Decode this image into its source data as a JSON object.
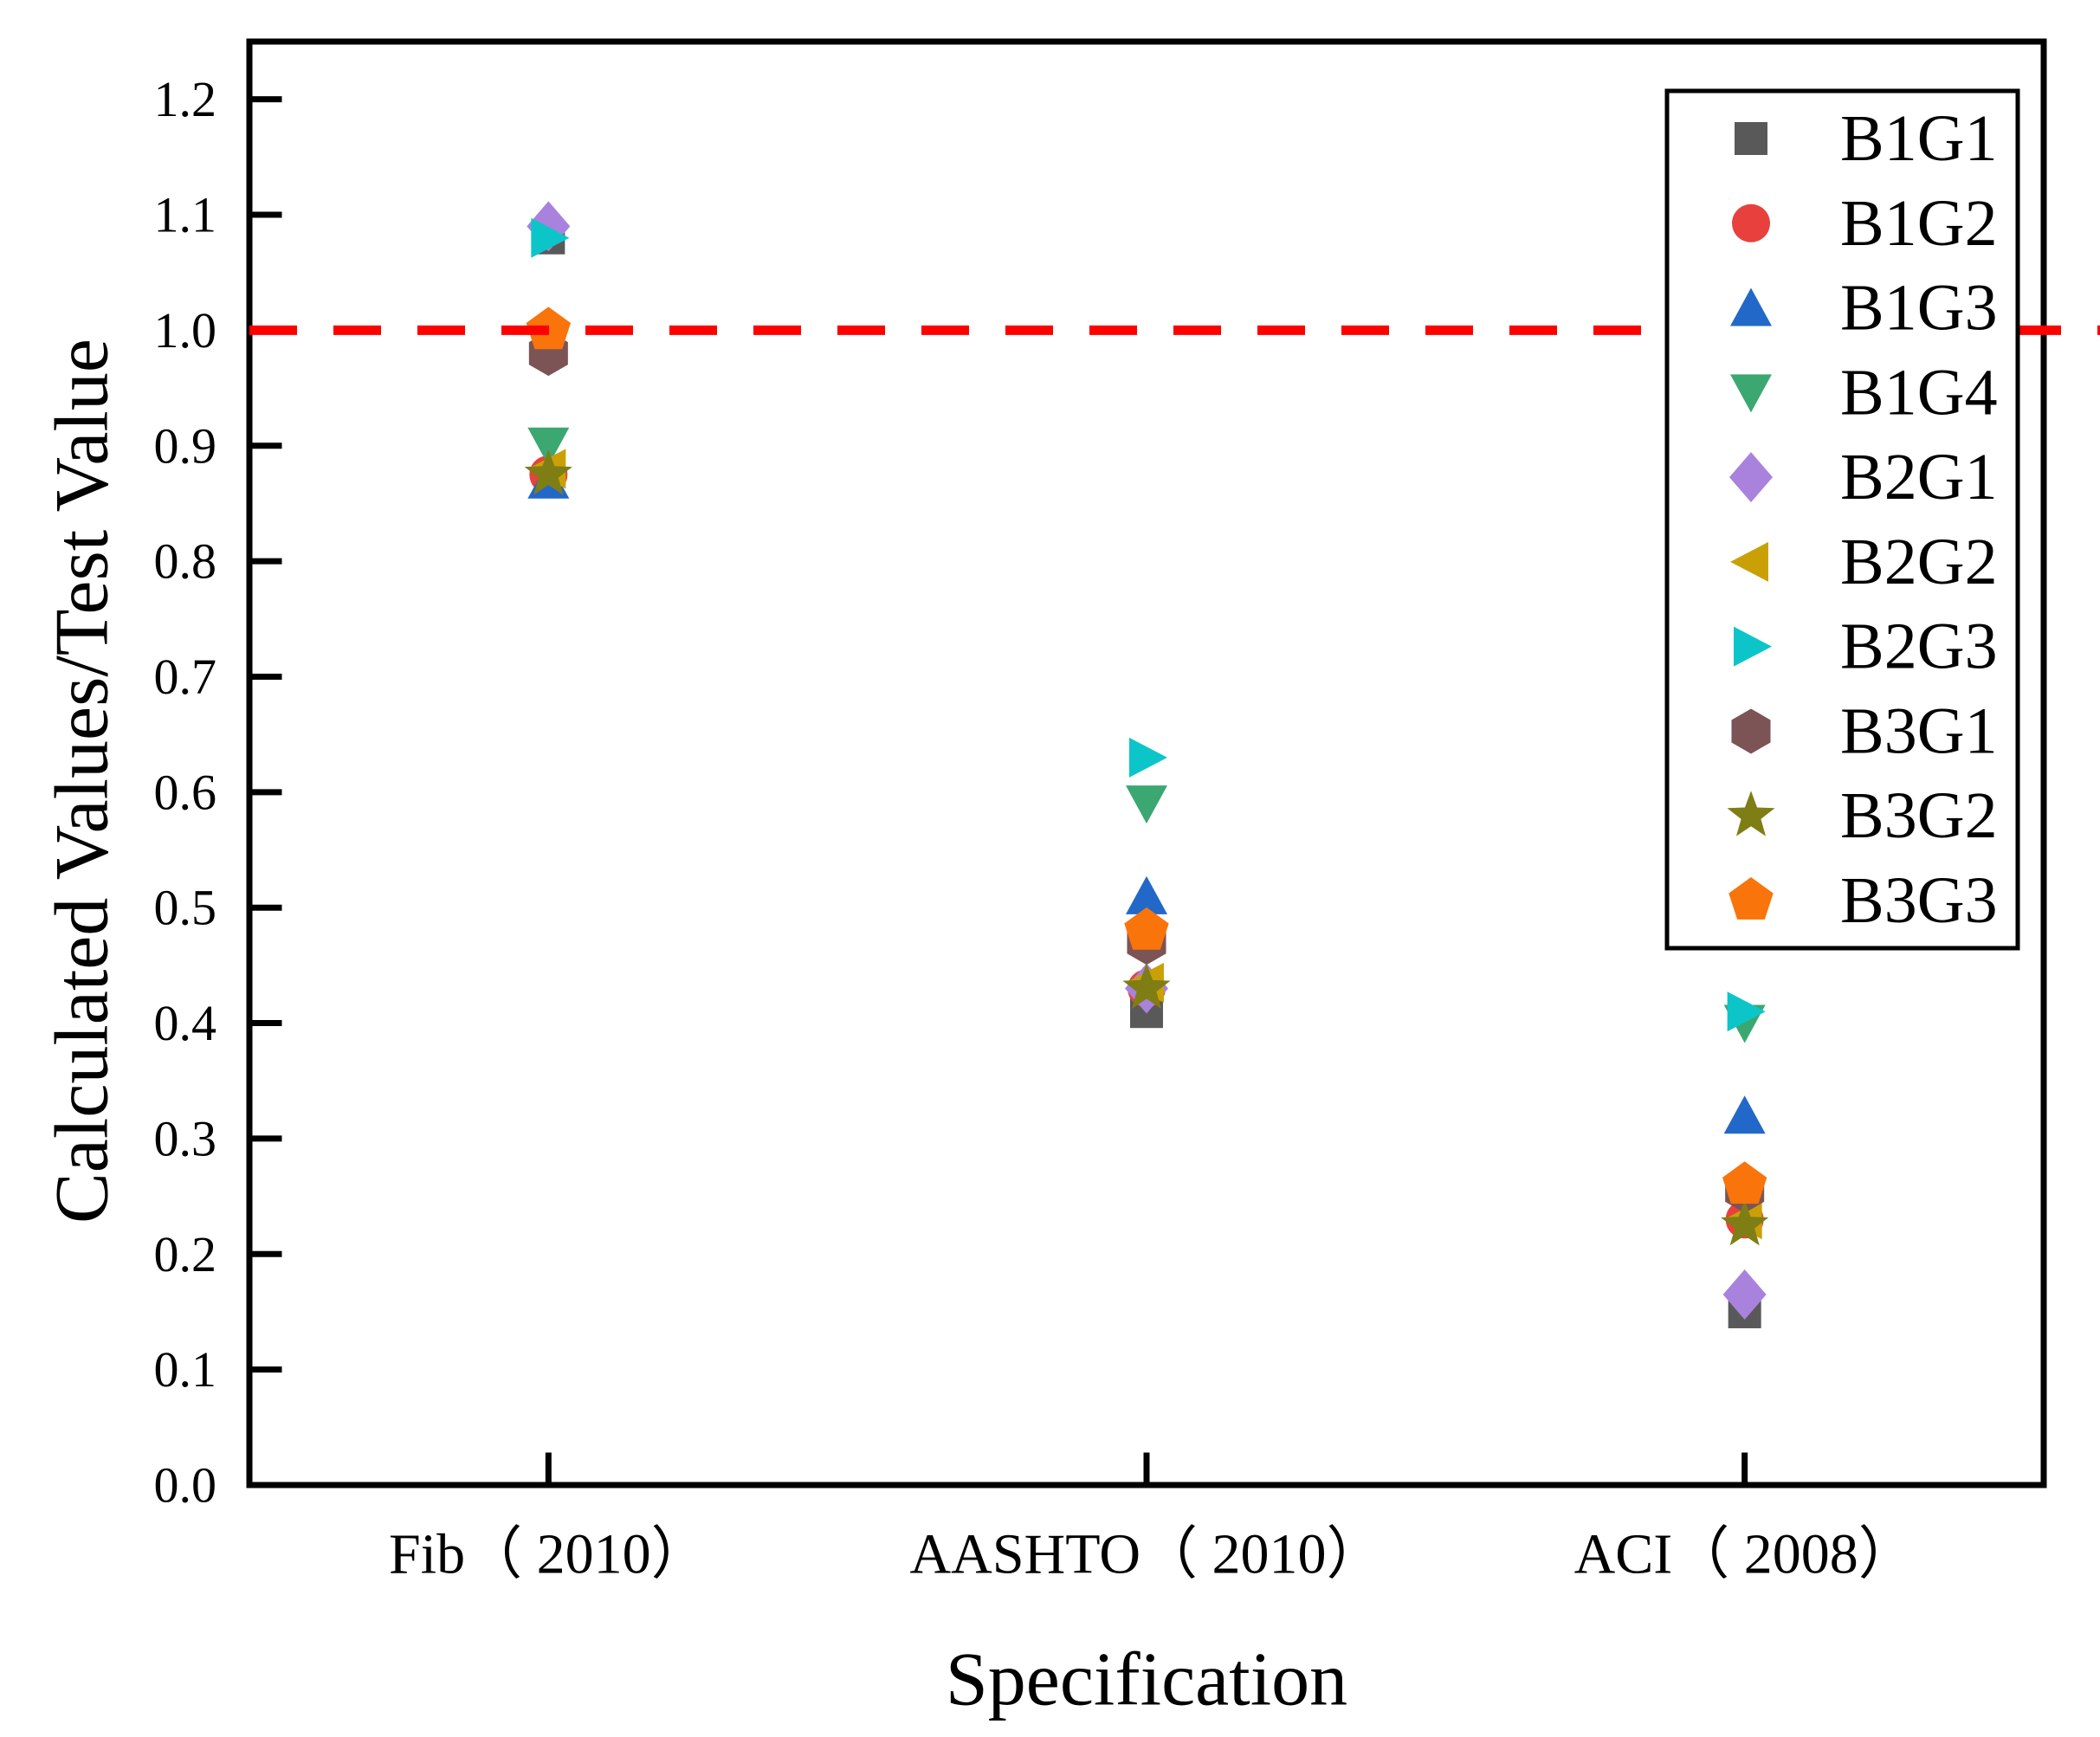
{
  "chart_data": {
    "type": "scatter",
    "title": "",
    "xlabel": "Specification",
    "ylabel": "Calculated Values/Test Value",
    "categories": [
      "Fib（ 2010）",
      "AASHTO（ 2010）",
      "ACI（ 2008）"
    ],
    "ylim": [
      0,
      1.25
    ],
    "yticks": [
      0.0,
      0.1,
      0.2,
      0.3,
      0.4,
      0.5,
      0.6,
      0.7,
      0.8,
      0.9,
      1.0,
      1.1,
      1.2
    ],
    "grid": false,
    "legend_position": "upper right",
    "reference_line": {
      "y": 1.0,
      "color": "#ff0000",
      "style": "dashed"
    },
    "series": [
      {
        "name": "B1G1",
        "marker": "square",
        "color": "#595959",
        "values": [
          1.08,
          0.41,
          0.15
        ]
      },
      {
        "name": "B1G2",
        "marker": "circle",
        "color": "#e8413d",
        "values": [
          0.875,
          0.43,
          0.23
        ]
      },
      {
        "name": "B1G3",
        "marker": "triangle-up",
        "color": "#2268c9",
        "values": [
          0.87,
          0.51,
          0.32
        ]
      },
      {
        "name": "B1G4",
        "marker": "triangle-down",
        "color": "#3ba871",
        "values": [
          0.9,
          0.59,
          0.4
        ]
      },
      {
        "name": "B2G1",
        "marker": "diamond",
        "color": "#a982dd",
        "values": [
          1.09,
          0.43,
          0.165
        ]
      },
      {
        "name": "B2G2",
        "marker": "triangle-left",
        "color": "#c9a106",
        "values": [
          0.88,
          0.435,
          0.23
        ]
      },
      {
        "name": "B2G3",
        "marker": "triangle-right",
        "color": "#0cc5c9",
        "values": [
          1.08,
          0.63,
          0.41
        ]
      },
      {
        "name": "B3G1",
        "marker": "hexagon",
        "color": "#7c5455",
        "values": [
          0.98,
          0.47,
          0.255
        ]
      },
      {
        "name": "B3G2",
        "marker": "star",
        "color": "#7e7e14",
        "values": [
          0.875,
          0.43,
          0.225
        ]
      },
      {
        "name": "B3G3",
        "marker": "pentagon",
        "color": "#f9740a",
        "values": [
          1.0,
          0.48,
          0.26
        ]
      }
    ]
  }
}
